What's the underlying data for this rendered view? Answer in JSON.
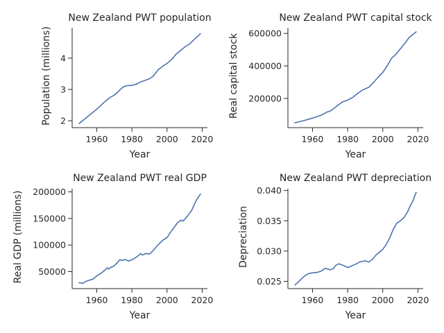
{
  "colors": {
    "series": "#4c72b0",
    "axis": "#262626",
    "background": "#ffffff"
  },
  "chart_data": [
    {
      "type": "line",
      "title": "New Zealand PWT population",
      "xlabel": "Year",
      "ylabel": "Population (millions)",
      "xlim": [
        1946,
        2023
      ],
      "ylim": [
        1.78,
        4.97
      ],
      "xticks": [
        1960,
        1980,
        2000,
        2020
      ],
      "yticks": [
        2,
        3,
        4
      ],
      "ytick_labels": [
        "2",
        "3",
        "4"
      ],
      "grid": false,
      "series": [
        {
          "x": [
            1950,
            1955,
            1960,
            1965,
            1968,
            1970,
            1972,
            1975,
            1977,
            1980,
            1983,
            1985,
            1988,
            1990,
            1992,
            1995,
            1998,
            2000,
            2003,
            2005,
            2008,
            2010,
            2013,
            2015,
            2019
          ],
          "y": [
            1.91,
            2.14,
            2.37,
            2.63,
            2.76,
            2.82,
            2.92,
            3.08,
            3.12,
            3.13,
            3.18,
            3.24,
            3.3,
            3.34,
            3.42,
            3.63,
            3.76,
            3.83,
            3.98,
            4.12,
            4.26,
            4.35,
            4.46,
            4.57,
            4.78
          ]
        }
      ]
    },
    {
      "type": "line",
      "title": "New Zealand PWT capital stock",
      "xlabel": "Year",
      "ylabel": "Real capital stock",
      "xlim": [
        1946,
        2023
      ],
      "ylim": [
        20000,
        635000
      ],
      "xticks": [
        1960,
        1980,
        2000,
        2020
      ],
      "yticks": [
        200000,
        400000,
        600000
      ],
      "ytick_labels": [
        "200000",
        "400000",
        "600000"
      ],
      "grid": false,
      "series": [
        {
          "x": [
            1950,
            1955,
            1960,
            1965,
            1968,
            1970,
            1972,
            1975,
            1977,
            1980,
            1983,
            1985,
            1988,
            1990,
            1992,
            1995,
            1998,
            2000,
            2003,
            2005,
            2008,
            2010,
            2013,
            2015,
            2019
          ],
          "y": [
            50000,
            63000,
            79000,
            97000,
            115000,
            122000,
            137000,
            162000,
            178000,
            190000,
            207000,
            225000,
            248000,
            259000,
            268000,
            302000,
            338000,
            360000,
            410000,
            447000,
            478000,
            505000,
            545000,
            575000,
            610000
          ]
        }
      ]
    },
    {
      "type": "line",
      "title": "New Zealand PWT real GDP",
      "xlabel": "Year",
      "ylabel": "Real GDP (millions)",
      "xlim": [
        1946,
        2023
      ],
      "ylim": [
        18000,
        206000
      ],
      "xticks": [
        1960,
        1980,
        2000,
        2020
      ],
      "yticks": [
        50000,
        100000,
        150000,
        200000
      ],
      "ytick_labels": [
        "50000",
        "100000",
        "150000",
        "200000"
      ],
      "grid": false,
      "series": [
        {
          "x": [
            1950,
            1952,
            1954,
            1956,
            1958,
            1960,
            1962,
            1964,
            1966,
            1967,
            1968,
            1970,
            1972,
            1973,
            1975,
            1976,
            1978,
            1980,
            1982,
            1984,
            1985,
            1986,
            1988,
            1990,
            1992,
            1994,
            1996,
            1998,
            2000,
            2002,
            2004,
            2006,
            2008,
            2009,
            2010,
            2012,
            2014,
            2016,
            2017,
            2019
          ],
          "y": [
            29000,
            28000,
            32000,
            34000,
            36000,
            42000,
            46000,
            51000,
            57000,
            55000,
            58000,
            61000,
            68000,
            72000,
            71000,
            73000,
            70000,
            72000,
            76000,
            81000,
            84000,
            81000,
            84000,
            83000,
            89000,
            97000,
            104000,
            110000,
            114000,
            124000,
            133000,
            142000,
            147000,
            145000,
            148000,
            156000,
            165000,
            180000,
            186000,
            196000
          ]
        }
      ]
    },
    {
      "type": "line",
      "title": "New Zealand PWT depreciation",
      "xlabel": "Year",
      "ylabel": "Depreciation",
      "xlim": [
        1946,
        2023
      ],
      "ylim": [
        0.0238,
        0.0403
      ],
      "xticks": [
        1960,
        1980,
        2000,
        2020
      ],
      "yticks": [
        0.025,
        0.03,
        0.035,
        0.04
      ],
      "ytick_labels": [
        "0.025",
        "0.030",
        "0.035",
        "0.040"
      ],
      "grid": false,
      "series": [
        {
          "x": [
            1950,
            1952,
            1954,
            1956,
            1958,
            1960,
            1963,
            1965,
            1967,
            1968,
            1970,
            1972,
            1973,
            1975,
            1977,
            1980,
            1982,
            1985,
            1987,
            1990,
            1992,
            1994,
            1996,
            1998,
            2000,
            2002,
            2004,
            2006,
            2008,
            2010,
            2012,
            2014,
            2016,
            2017,
            2019
          ],
          "y": [
            0.0244,
            0.0249,
            0.0255,
            0.026,
            0.0263,
            0.0264,
            0.0265,
            0.0267,
            0.0271,
            0.0271,
            0.0269,
            0.0271,
            0.0276,
            0.0279,
            0.0277,
            0.0273,
            0.0275,
            0.0279,
            0.0282,
            0.0284,
            0.0282,
            0.0286,
            0.0293,
            0.0298,
            0.0303,
            0.0311,
            0.0322,
            0.0336,
            0.0346,
            0.035,
            0.0355,
            0.0364,
            0.0377,
            0.0382,
            0.0397
          ]
        }
      ]
    }
  ]
}
